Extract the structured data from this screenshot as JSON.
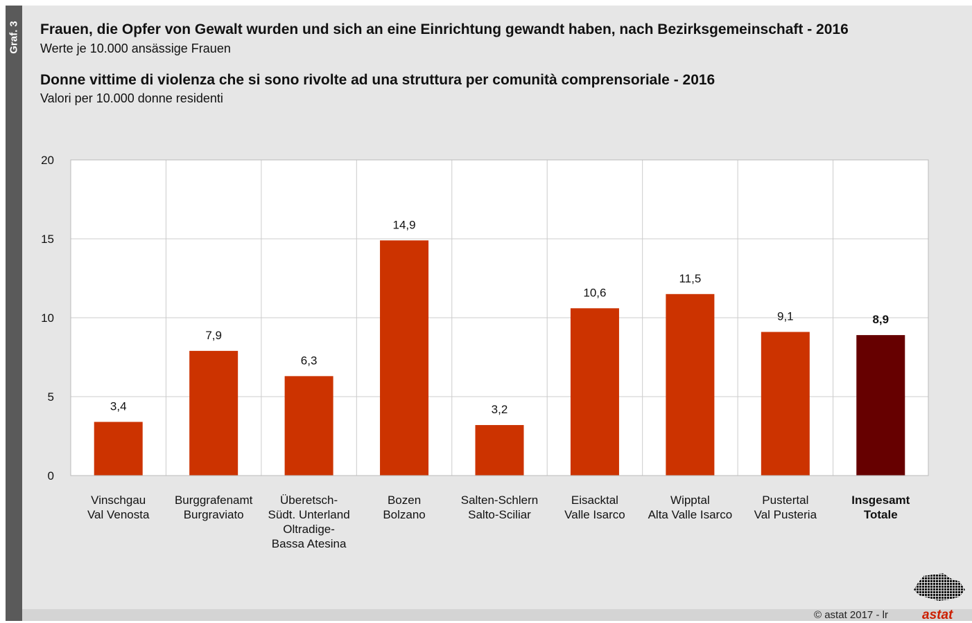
{
  "sidebar": {
    "label": "Graf. 3"
  },
  "header": {
    "title_de": "Frauen, die Opfer von Gewalt wurden und sich an eine Einrichtung gewandt haben, nach Bezirksgemeinschaft - 2016",
    "subtitle_de": "Werte je 10.000 ansässige Frauen",
    "title_it": "Donne vittime di violenza che si sono rivolte ad una struttura per comunità comprensoriale - 2016",
    "subtitle_it": "Valori per 10.000 donne residenti"
  },
  "chart_data": {
    "type": "bar",
    "categories": [
      [
        "Vinschgau",
        "Val Venosta"
      ],
      [
        "Burggrafenamt",
        "Burgraviato"
      ],
      [
        "Überetsch-",
        "Südt. Unterland",
        "Oltradige-",
        "Bassa Atesina"
      ],
      [
        "Bozen",
        "Bolzano"
      ],
      [
        "Salten-Schlern",
        "Salto-Sciliar"
      ],
      [
        "Eisacktal",
        "Valle Isarco"
      ],
      [
        "Wipptal",
        "Alta Valle Isarco"
      ],
      [
        "Pustertal",
        "Val Pusteria"
      ],
      [
        "Insgesamt",
        "Totale"
      ]
    ],
    "values": [
      3.4,
      7.9,
      6.3,
      14.9,
      3.2,
      10.6,
      11.5,
      9.1,
      8.9
    ],
    "value_labels": [
      "3,4",
      "7,9",
      "6,3",
      "14,9",
      "3,2",
      "10,6",
      "11,5",
      "9,1",
      "8,9"
    ],
    "highlight_index": 8,
    "ylim": [
      0,
      20
    ],
    "yticks": [
      0,
      5,
      10,
      15,
      20
    ],
    "ytick_labels": [
      "0",
      "5",
      "10",
      "15",
      "20"
    ],
    "grid": true,
    "colors": {
      "bar": "#cc3300",
      "total": "#660000",
      "grid": "#cccccc",
      "plot_bg": "#ffffff"
    }
  },
  "footer": {
    "copyright": "©  astat 2017 - lr",
    "logo_text": "astat"
  }
}
